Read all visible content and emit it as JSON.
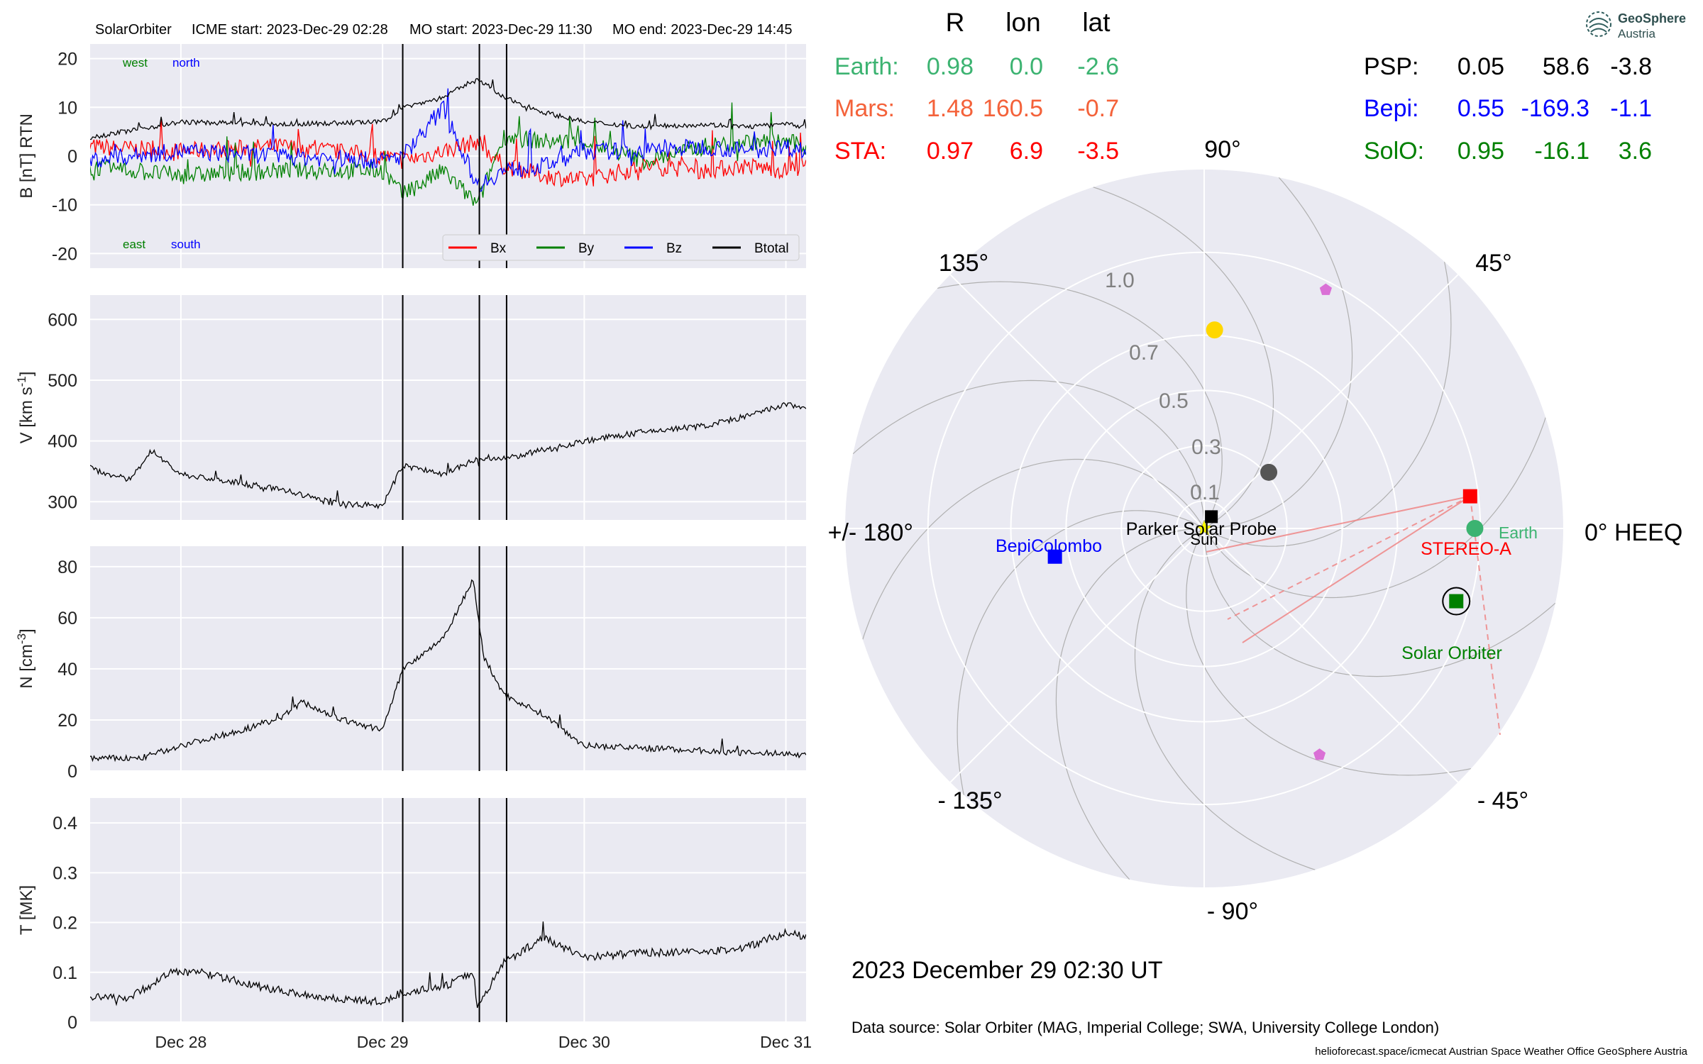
{
  "header": {
    "spacecraft": "SolarOrbiter",
    "icme_start": "ICME start: 2023-Dec-29 02:28",
    "mo_start": "MO start: 2023-Dec-29 11:30",
    "mo_end": "MO end: 2023-Dec-29 14:45"
  },
  "logo": {
    "line1": "GeoSphere",
    "line2": "Austria"
  },
  "position_table": {
    "headers": [
      "R",
      "lon",
      "lat"
    ],
    "left": [
      {
        "name": "Earth:",
        "r": "0.98",
        "lon": "0.0",
        "lat": "-2.6",
        "color": "#3cb371"
      },
      {
        "name": "Mars:",
        "r": "1.48",
        "lon": "160.5",
        "lat": "-0.7",
        "color": "#f4623a"
      },
      {
        "name": "STA:",
        "r": "0.97",
        "lon": "6.9",
        "lat": "-3.5",
        "color": "#ff0000"
      }
    ],
    "right": [
      {
        "name": "PSP:",
        "r": "0.05",
        "lon": "58.6",
        "lat": "-3.8",
        "color": "#000000"
      },
      {
        "name": "Bepi:",
        "r": "0.55",
        "lon": "-169.3",
        "lat": "-1.1",
        "color": "#0000ff"
      },
      {
        "name": "SolO:",
        "r": "0.95",
        "lon": "-16.1",
        "lat": "3.6",
        "color": "#008000"
      }
    ]
  },
  "polar": {
    "angle_labels": [
      "90°",
      "45°",
      "0° HEEQ",
      "- 45°",
      "- 90°",
      "- 135°",
      "+/- 180°",
      "135°"
    ],
    "radial_labels": [
      "0.1",
      "0.3",
      "0.5",
      "0.7",
      "1.0"
    ],
    "bodies": [
      {
        "name": "Sun",
        "label": "Sun",
        "r": 0.0,
        "lon": 0,
        "marker": "star",
        "color": "#ffff00"
      },
      {
        "name": "Parker Solar Probe",
        "label": "Parker Solar Probe",
        "r": 0.05,
        "lon": 58.6,
        "marker": "square",
        "color": "#000000"
      },
      {
        "name": "Earth",
        "label": "Earth",
        "r": 0.98,
        "lon": 0.0,
        "marker": "circle",
        "color": "#3cb371"
      },
      {
        "name": "STEREO-A",
        "label": "STEREO-A",
        "r": 0.97,
        "lon": 6.9,
        "marker": "square",
        "color": "#ff0000"
      },
      {
        "name": "Solar Orbiter",
        "label": "Solar Orbiter",
        "r": 0.95,
        "lon": -16.1,
        "marker": "square",
        "color": "#008000"
      },
      {
        "name": "BepiColombo",
        "label": "BepiColombo",
        "r": 0.55,
        "lon": -169.3,
        "marker": "square",
        "color": "#0000ff"
      },
      {
        "name": "Mercury",
        "label": "",
        "r": 0.31,
        "lon": 41,
        "marker": "circle",
        "color": "#555555"
      },
      {
        "name": "Venus",
        "label": "",
        "r": 0.72,
        "lon": 87,
        "marker": "circle",
        "color": "#ffd700"
      },
      {
        "name": "Pentagon upper",
        "label": "",
        "r": 0.97,
        "lon": 63,
        "marker": "pentagon",
        "color": "#da70d6"
      },
      {
        "name": "Pentagon lower",
        "label": "",
        "r": 0.92,
        "lon": -63,
        "marker": "pentagon",
        "color": "#da70d6"
      }
    ]
  },
  "date_label": "2023 December 29  02:30 UT",
  "data_source": "Data source: Solar Orbiter (MAG, Imperial College; SWA, University College London)",
  "footer": "helioforecast.space/icmecat   Austrian Space Weather Office   GeoSphere Austria",
  "chart_data": [
    {
      "type": "line",
      "ylabel": "B [nT] RTN",
      "ylim": [
        -23,
        23
      ],
      "yticks": [
        -20,
        -10,
        0,
        10,
        20
      ],
      "annotations": {
        "west": "west",
        "north": "north",
        "east": "east",
        "south": "south"
      },
      "legend": [
        "Bx",
        "By",
        "Bz",
        "Btotal"
      ],
      "legend_position": "lower-right",
      "series": [
        {
          "name": "Bx",
          "color": "#ff0000",
          "x": [
            27.5,
            28.0,
            28.5,
            29.0,
            29.1,
            29.3,
            29.47,
            29.6,
            29.8,
            30.0,
            30.3,
            30.6,
            30.8,
            31.0,
            31.1
          ],
          "y": [
            2,
            1,
            2,
            0,
            -1,
            1,
            3,
            -2,
            -4,
            -5,
            -2,
            -3,
            -2,
            -3,
            -2
          ]
        },
        {
          "name": "By",
          "color": "#008000",
          "x": [
            27.5,
            28.0,
            28.5,
            29.0,
            29.1,
            29.3,
            29.47,
            29.6,
            29.8,
            30.0,
            30.3,
            30.6,
            30.8,
            31.0,
            31.1
          ],
          "y": [
            -2,
            -4,
            -3,
            -3,
            -8,
            -3,
            -10,
            4,
            3,
            3,
            -1,
            2,
            3,
            3,
            2
          ]
        },
        {
          "name": "Bz",
          "color": "#0000ff",
          "x": [
            27.5,
            28.0,
            28.5,
            29.0,
            29.1,
            29.3,
            29.47,
            29.6,
            29.8,
            30.0,
            30.3,
            30.6,
            30.8,
            31.0,
            31.1
          ],
          "y": [
            -1,
            1,
            0,
            -1,
            0,
            10,
            -6,
            -3,
            -2,
            1,
            1,
            2,
            1,
            2,
            1
          ]
        },
        {
          "name": "Btotal",
          "color": "#000000",
          "x": [
            27.5,
            28.0,
            28.5,
            29.0,
            29.1,
            29.3,
            29.47,
            29.6,
            29.8,
            30.0,
            30.3,
            30.6,
            30.8,
            31.0,
            31.1
          ],
          "y": [
            3.5,
            7,
            6.5,
            7,
            10,
            12,
            16,
            12,
            9,
            7,
            6,
            6.5,
            6,
            6.5,
            6
          ]
        }
      ]
    },
    {
      "type": "line",
      "ylabel": "V [km s^-1]",
      "ylim": [
        270,
        640
      ],
      "yticks": [
        300,
        400,
        500,
        600
      ],
      "series": [
        {
          "name": "V",
          "color": "#000000",
          "x": [
            27.5,
            27.75,
            27.85,
            28.0,
            28.5,
            28.75,
            29.0,
            29.1,
            29.3,
            29.47,
            29.6,
            29.8,
            30.0,
            30.3,
            30.6,
            30.8,
            31.0,
            31.1
          ],
          "y": [
            360,
            335,
            385,
            345,
            320,
            298,
            293,
            360,
            345,
            370,
            370,
            385,
            400,
            415,
            425,
            440,
            460,
            455
          ]
        }
      ]
    },
    {
      "type": "line",
      "ylabel": "N [cm^-3]",
      "ylim": [
        0,
        88
      ],
      "yticks": [
        0,
        20,
        40,
        60,
        80
      ],
      "series": [
        {
          "name": "N",
          "color": "#000000",
          "x": [
            27.5,
            27.8,
            28.0,
            28.3,
            28.5,
            28.6,
            28.8,
            29.0,
            29.1,
            29.3,
            29.45,
            29.5,
            29.6,
            29.8,
            30.0,
            30.3,
            30.6,
            30.8,
            31.0,
            31.1
          ],
          "y": [
            5,
            5,
            10,
            16,
            21,
            27,
            20,
            16,
            40,
            52,
            75,
            45,
            30,
            22,
            10,
            9,
            8,
            7,
            7,
            6
          ]
        }
      ]
    },
    {
      "type": "line",
      "ylabel": "T [MK]",
      "ylim": [
        0,
        0.45
      ],
      "yticks": [
        0.0,
        0.1,
        0.2,
        0.3,
        0.4
      ],
      "series": [
        {
          "name": "T",
          "color": "#000000",
          "x": [
            27.5,
            27.75,
            27.95,
            28.1,
            28.4,
            28.7,
            29.0,
            29.1,
            29.3,
            29.45,
            29.47,
            29.6,
            29.8,
            30.0,
            30.3,
            30.6,
            30.8,
            31.0,
            31.1
          ],
          "y": [
            0.05,
            0.05,
            0.1,
            0.1,
            0.07,
            0.05,
            0.04,
            0.06,
            0.07,
            0.1,
            0.03,
            0.12,
            0.17,
            0.13,
            0.14,
            0.14,
            0.15,
            0.18,
            0.17
          ]
        }
      ]
    }
  ],
  "time_axis": {
    "xlim": [
      27.55,
      31.1
    ],
    "ticks": [
      {
        "x": 28,
        "label": "Dec 28"
      },
      {
        "x": 29,
        "label": "Dec 29"
      },
      {
        "x": 30,
        "label": "Dec 30"
      },
      {
        "x": 31,
        "label": "Dec 31"
      }
    ],
    "event_lines": [
      29.1,
      29.48,
      29.615
    ]
  }
}
